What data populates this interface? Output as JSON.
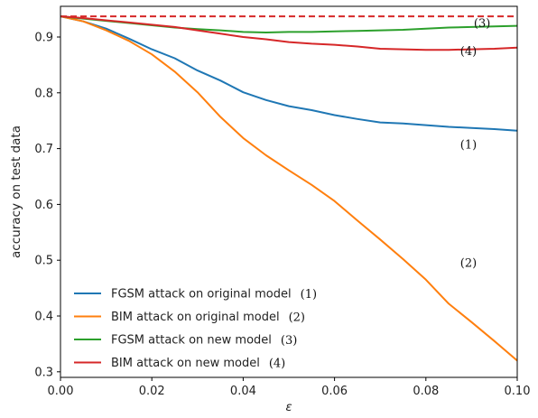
{
  "chart_data": {
    "type": "line",
    "title": "",
    "xlabel": "ε",
    "ylabel": "accuracy on test data",
    "xlim": [
      0.0,
      0.1
    ],
    "ylim": [
      0.29,
      0.955
    ],
    "x_ticks": [
      "0.00",
      "0.02",
      "0.04",
      "0.06",
      "0.08",
      "0.10"
    ],
    "x_tick_values": [
      0.0,
      0.02,
      0.04,
      0.06,
      0.08,
      0.1
    ],
    "y_ticks": [
      "0.3",
      "0.4",
      "0.5",
      "0.6",
      "0.7",
      "0.8",
      "0.9"
    ],
    "y_tick_values": [
      0.3,
      0.4,
      0.5,
      0.6,
      0.7,
      0.8,
      0.9
    ],
    "grid": false,
    "legend_position": "lower-left",
    "x": [
      0.0,
      0.005,
      0.01,
      0.015,
      0.02,
      0.025,
      0.03,
      0.035,
      0.04,
      0.045,
      0.05,
      0.055,
      0.06,
      0.065,
      0.07,
      0.075,
      0.08,
      0.085,
      0.09,
      0.095,
      0.1
    ],
    "baseline": {
      "y": 0.937,
      "color": "#d62728",
      "style": "dashed"
    },
    "series": [
      {
        "name": "FGSM attack on original model",
        "tag": "(1)",
        "color": "#1f77b4",
        "values": [
          0.937,
          0.928,
          0.915,
          0.897,
          0.878,
          0.862,
          0.84,
          0.822,
          0.801,
          0.787,
          0.776,
          0.769,
          0.76,
          0.753,
          0.747,
          0.745,
          0.742,
          0.739,
          0.737,
          0.735,
          0.732
        ]
      },
      {
        "name": "BIM attack on original model",
        "tag": "(2)",
        "color": "#ff7f0e",
        "values": [
          0.937,
          0.928,
          0.912,
          0.893,
          0.869,
          0.838,
          0.801,
          0.757,
          0.719,
          0.688,
          0.661,
          0.635,
          0.606,
          0.571,
          0.537,
          0.502,
          0.465,
          0.422,
          0.389,
          0.355,
          0.32
        ]
      },
      {
        "name": "FGSM attack on new model",
        "tag": "(3)",
        "color": "#2ca02c",
        "values": [
          0.937,
          0.933,
          0.929,
          0.925,
          0.921,
          0.917,
          0.914,
          0.912,
          0.909,
          0.908,
          0.909,
          0.909,
          0.91,
          0.911,
          0.912,
          0.913,
          0.915,
          0.917,
          0.918,
          0.919,
          0.92
        ]
      },
      {
        "name": "BIM attack on new model",
        "tag": "(4)",
        "color": "#d62728",
        "values": [
          0.937,
          0.934,
          0.93,
          0.926,
          0.922,
          0.918,
          0.912,
          0.906,
          0.9,
          0.896,
          0.891,
          0.888,
          0.886,
          0.883,
          0.879,
          0.878,
          0.877,
          0.877,
          0.878,
          0.879,
          0.881
        ]
      }
    ],
    "annotations": [
      {
        "text": "(3)",
        "x": 0.0905,
        "y": 0.918
      },
      {
        "text": "(4)",
        "x": 0.0875,
        "y": 0.868
      },
      {
        "text": "(1)",
        "x": 0.0875,
        "y": 0.7
      },
      {
        "text": "(2)",
        "x": 0.0875,
        "y": 0.488
      }
    ]
  }
}
